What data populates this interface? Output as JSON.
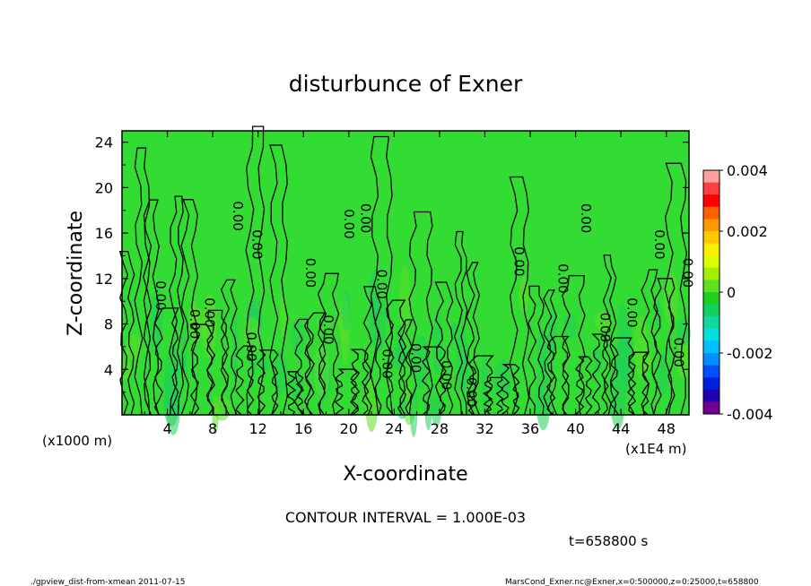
{
  "chart_data": {
    "type": "heatmap",
    "title": "disturbunce of Exner",
    "xlabel": "X-coordinate",
    "ylabel": "Z-coordinate",
    "x_unit_left": "(x1000 m)",
    "x_unit_right": "(x1E4 m)",
    "xlim": [
      0,
      50
    ],
    "ylim": [
      0,
      25
    ],
    "x_ticks": [
      "4",
      "8",
      "12",
      "16",
      "20",
      "24",
      "28",
      "32",
      "36",
      "40",
      "44",
      "48"
    ],
    "y_ticks": [
      "4",
      "8",
      "12",
      "16",
      "20",
      "24"
    ],
    "colorbar": {
      "range": [
        -0.004,
        0.004
      ],
      "labels": [
        "0.004",
        "0.002",
        "0",
        "-0.002",
        "-0.004"
      ],
      "colors": [
        "#ffa0a0",
        "#ff4040",
        "#ff0000",
        "#ff6000",
        "#ff9900",
        "#ffc800",
        "#ffee00",
        "#d8ff00",
        "#a0f000",
        "#60e020",
        "#20d020",
        "#10d060",
        "#10d8a0",
        "#00e0e0",
        "#00c0ff",
        "#0090ff",
        "#0050ff",
        "#0020e0",
        "#2000b0",
        "#700090"
      ]
    },
    "contour_interval": "CONTOUR INTERVAL = 1.000E-03",
    "contour_labels": [
      {
        "x": 3.0,
        "z": 10.5,
        "text": "0.00"
      },
      {
        "x": 6.0,
        "z": 8.0,
        "text": "0.00"
      },
      {
        "x": 7.3,
        "z": 9.0,
        "text": "0.00"
      },
      {
        "x": 9.8,
        "z": 17.5,
        "text": "0.00"
      },
      {
        "x": 11.5,
        "z": 15.0,
        "text": "0.00"
      },
      {
        "x": 11.0,
        "z": 6.0,
        "text": "0.00"
      },
      {
        "x": 16.2,
        "z": 12.5,
        "text": "0.00"
      },
      {
        "x": 17.8,
        "z": 7.5,
        "text": "0.00"
      },
      {
        "x": 19.6,
        "z": 16.8,
        "text": "0.00"
      },
      {
        "x": 21.1,
        "z": 17.3,
        "text": "0.00"
      },
      {
        "x": 22.5,
        "z": 11.5,
        "text": "0.00"
      },
      {
        "x": 23.0,
        "z": 4.5,
        "text": "0.00"
      },
      {
        "x": 25.5,
        "z": 5.0,
        "text": "0.00"
      },
      {
        "x": 28.2,
        "z": 3.5,
        "text": "0.00"
      },
      {
        "x": 30.4,
        "z": 2.0,
        "text": "0.00"
      },
      {
        "x": 34.6,
        "z": 13.5,
        "text": "0.00"
      },
      {
        "x": 38.5,
        "z": 12.0,
        "text": "0.00"
      },
      {
        "x": 40.5,
        "z": 17.3,
        "text": "0.00"
      },
      {
        "x": 42.2,
        "z": 7.7,
        "text": "0.00"
      },
      {
        "x": 44.6,
        "z": 9.0,
        "text": "0.00"
      },
      {
        "x": 47.0,
        "z": 15.0,
        "text": "0.00"
      },
      {
        "x": 48.7,
        "z": 5.5,
        "text": "0.00"
      },
      {
        "x": 49.5,
        "z": 12.5,
        "text": "0.00"
      }
    ],
    "time_label": "t=658800 s"
  },
  "footer": {
    "left": "./gpview_dist-from-xmean  2011-07-15",
    "right": "MarsCond_Exner.nc@Exner,x=0:500000,z=0:25000,t=658800"
  }
}
